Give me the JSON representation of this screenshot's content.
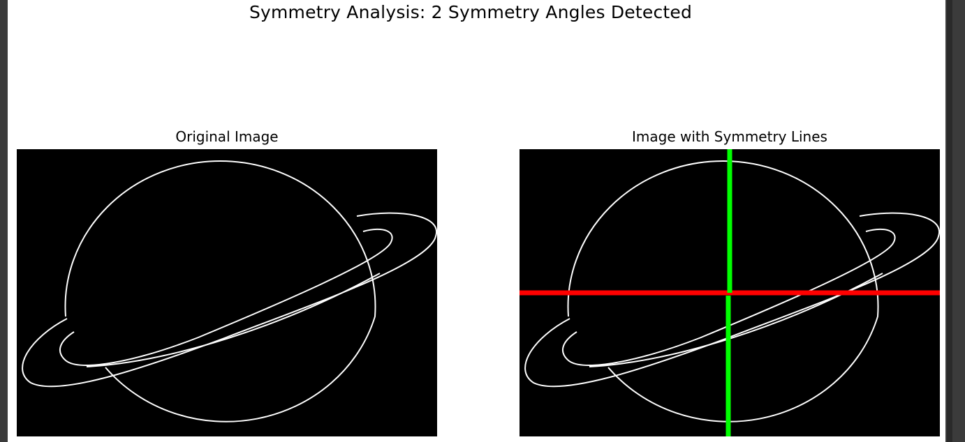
{
  "figure": {
    "suptitle": "Symmetry Analysis: 2 Symmetry Angles Detected"
  },
  "panels": [
    {
      "title": "Original Image",
      "image": "planet-ring-edge-outline"
    },
    {
      "title": "Image with Symmetry Lines",
      "image": "planet-ring-edge-outline",
      "symmetry_lines": [
        {
          "orientation": "vertical",
          "color": "#00ff00"
        },
        {
          "orientation": "horizontal",
          "color": "#ff0000"
        }
      ]
    }
  ],
  "colors": {
    "background": "#000000",
    "outline": "#ffffff",
    "vertical_line": "#00ff00",
    "horizontal_line": "#ff0000"
  }
}
